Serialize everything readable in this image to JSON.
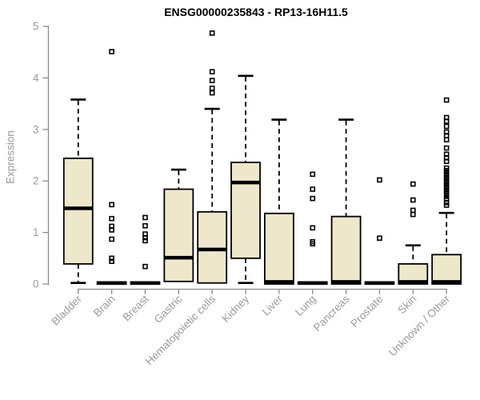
{
  "title": "ENSG00000235843 - RP13-16H11.5",
  "chart_data": {
    "type": "boxplot",
    "title": "ENSG00000235843 - RP13-16H11.5",
    "xlabel": "",
    "ylabel": "Expression",
    "ylim": [
      0,
      5
    ],
    "yticks": [
      0,
      1,
      2,
      3,
      4,
      5
    ],
    "grid": false,
    "legend": "none",
    "colors": {
      "box_fill": "#EDE7CB",
      "box_line": "#000000",
      "axis": "#8A8A8A",
      "label": "#9B9B9B",
      "title": "#000000"
    },
    "categories": [
      "Bladder",
      "Brain",
      "Breast",
      "Gastric",
      "Hematopoietic cells",
      "Kidney",
      "Liver",
      "Lung",
      "Pancreas",
      "Prostate",
      "Skin",
      "Unknown / Other"
    ],
    "series": [
      {
        "name": "Bladder",
        "whisker_low": 0.02,
        "q1": 0.39,
        "median": 1.47,
        "q3": 2.44,
        "whisker_high": 3.58,
        "outliers": []
      },
      {
        "name": "Brain",
        "whisker_low": 0,
        "q1": 0,
        "median": 0.02,
        "q3": 0.04,
        "whisker_high": 0.04,
        "outliers": [
          4.51,
          1.54,
          1.27,
          1.12,
          1.05,
          0.87,
          0.5,
          0.44
        ]
      },
      {
        "name": "Breast",
        "whisker_low": 0,
        "q1": 0,
        "median": 0.02,
        "q3": 0.04,
        "whisker_high": 0.04,
        "outliers": [
          1.29,
          1.13,
          0.97,
          0.9,
          0.84,
          0.34
        ]
      },
      {
        "name": "Gastric",
        "whisker_low": 0.05,
        "q1": 0.05,
        "median": 0.51,
        "q3": 1.84,
        "whisker_high": 2.22,
        "outliers": []
      },
      {
        "name": "Hematopoietic cells",
        "whisker_low": 0.02,
        "q1": 0.02,
        "median": 0.67,
        "q3": 1.4,
        "whisker_high": 3.4,
        "outliers": [
          4.87,
          4.12,
          3.95,
          3.8,
          3.71
        ]
      },
      {
        "name": "Kidney",
        "whisker_low": 0.02,
        "q1": 0.5,
        "median": 1.97,
        "q3": 2.36,
        "whisker_high": 4.04,
        "outliers": []
      },
      {
        "name": "Liver",
        "whisker_low": 0,
        "q1": 0,
        "median": 0.04,
        "q3": 1.37,
        "whisker_high": 3.19,
        "outliers": []
      },
      {
        "name": "Lung",
        "whisker_low": 0,
        "q1": 0,
        "median": 0.02,
        "q3": 0.04,
        "whisker_high": 0.04,
        "outliers": [
          2.13,
          1.84,
          1.66,
          1.09,
          0.82,
          0.78
        ]
      },
      {
        "name": "Pancreas",
        "whisker_low": 0,
        "q1": 0,
        "median": 0.04,
        "q3": 1.31,
        "whisker_high": 3.19,
        "outliers": []
      },
      {
        "name": "Prostate",
        "whisker_low": 0,
        "q1": 0,
        "median": 0.02,
        "q3": 0.04,
        "whisker_high": 0.04,
        "outliers": [
          2.02,
          0.89
        ]
      },
      {
        "name": "Skin",
        "whisker_low": 0,
        "q1": 0,
        "median": 0.04,
        "q3": 0.39,
        "whisker_high": 0.75,
        "outliers": [
          1.94,
          1.63,
          1.43,
          1.35
        ]
      },
      {
        "name": "Unknown / Other",
        "whisker_low": 0,
        "q1": 0,
        "median": 0.04,
        "q3": 0.57,
        "whisker_high": 1.38,
        "outliers": [
          3.57,
          3.23,
          3.16,
          3.06,
          2.95,
          2.88,
          2.8,
          2.64,
          2.52,
          2.45,
          2.38,
          2.25,
          2.2,
          2.15,
          2.1,
          2.05,
          2.0,
          1.95,
          1.9,
          1.85,
          1.8,
          1.75,
          1.7,
          1.65,
          1.58,
          1.53
        ]
      }
    ]
  }
}
